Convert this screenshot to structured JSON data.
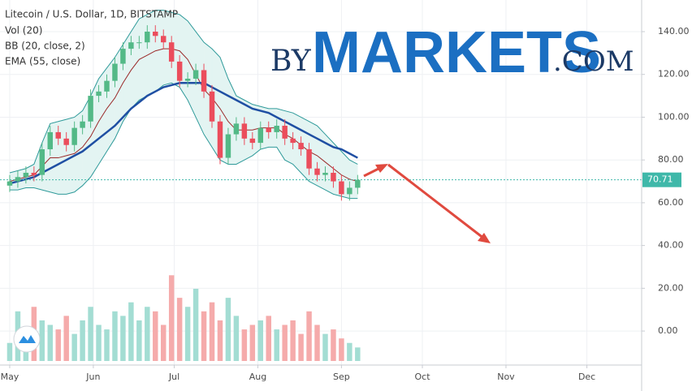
{
  "chart_data": {
    "type": "candlestick",
    "title": "Litecoin / U.S. Dollar, 1D, BITSTAMP",
    "watermark": [
      "BY",
      "MARKETS",
      ".COM"
    ],
    "x": [
      0,
      3,
      6,
      9,
      12,
      15,
      18,
      21,
      24,
      27,
      30,
      33,
      36,
      39,
      42,
      45,
      48,
      51,
      54,
      57,
      60,
      63,
      66,
      69,
      72,
      75,
      78,
      81,
      84,
      87,
      90,
      93,
      96,
      99,
      102,
      105,
      108,
      111,
      114,
      117,
      120,
      123,
      126,
      129
    ],
    "open": [
      68,
      70,
      72,
      74,
      73,
      85,
      93,
      90,
      87,
      95,
      98,
      110,
      112,
      117,
      125,
      132,
      135,
      135,
      140,
      138,
      135,
      126,
      117,
      118,
      122,
      112,
      98,
      81,
      92,
      97,
      90,
      88,
      95,
      93,
      96,
      90,
      88,
      85,
      76,
      73,
      74,
      70,
      64,
      67
    ],
    "high": [
      73,
      75,
      77,
      77,
      88,
      96,
      96,
      93,
      98,
      101,
      113,
      115,
      120,
      128,
      135,
      138,
      138,
      143,
      143,
      141,
      138,
      129,
      121,
      125,
      125,
      115,
      101,
      95,
      100,
      100,
      93,
      98,
      98,
      99,
      99,
      93,
      91,
      88,
      79,
      77,
      77,
      73,
      70,
      73
    ],
    "low": [
      65,
      67,
      69,
      70,
      70,
      82,
      87,
      84,
      84,
      92,
      95,
      107,
      109,
      114,
      122,
      129,
      132,
      132,
      135,
      132,
      123,
      114,
      114,
      115,
      109,
      95,
      78,
      78,
      89,
      87,
      85,
      85,
      90,
      90,
      87,
      85,
      82,
      73,
      70,
      70,
      67,
      61,
      61,
      64
    ],
    "close": [
      70,
      72,
      74,
      73,
      85,
      93,
      90,
      87,
      95,
      98,
      110,
      112,
      117,
      125,
      132,
      135,
      135,
      140,
      138,
      135,
      126,
      117,
      118,
      122,
      112,
      98,
      81,
      92,
      97,
      90,
      88,
      95,
      93,
      96,
      90,
      88,
      85,
      76,
      73,
      74,
      70,
      64,
      67,
      70.71
    ],
    "up_color": "#53b987",
    "down_color": "#eb4d5c",
    "volume": {
      "label": "Vol (20)",
      "values": [
        20,
        55,
        30,
        60,
        45,
        40,
        35,
        50,
        30,
        45,
        60,
        40,
        35,
        55,
        50,
        65,
        45,
        60,
        55,
        40,
        95,
        70,
        60,
        80,
        55,
        65,
        45,
        70,
        50,
        35,
        40,
        45,
        50,
        35,
        40,
        45,
        30,
        55,
        40,
        30,
        35,
        25,
        20,
        15
      ],
      "lim": [
        0,
        400
      ],
      "up_color": "#a3ddd3",
      "down_color": "#f5abab"
    },
    "bb": {
      "label": "BB (20, close, 2)",
      "color": "#2f9a9a",
      "basis_color": "#9b2a2a",
      "fill": "#e3f4f2",
      "upper": [
        74,
        75,
        76,
        78,
        88,
        97,
        98,
        99,
        100,
        103,
        110,
        118,
        123,
        128,
        134,
        140,
        146,
        148,
        150,
        150,
        149,
        148,
        145,
        140,
        135,
        132,
        128,
        118,
        110,
        108,
        106,
        105,
        104,
        104,
        103,
        102,
        100,
        98,
        96,
        92,
        88,
        84,
        80,
        78
      ],
      "basis": [
        70,
        71,
        72,
        73,
        77,
        81,
        81,
        82,
        83,
        86,
        91,
        98,
        104,
        109,
        116,
        122,
        127,
        129,
        131,
        132,
        132,
        131,
        127,
        120,
        113,
        109,
        104,
        98,
        94,
        94,
        94,
        95,
        95,
        95,
        92,
        90,
        87,
        84,
        82,
        79,
        76,
        73,
        71,
        70
      ],
      "lower": [
        66,
        66,
        67,
        67,
        66,
        65,
        64,
        64,
        65,
        68,
        72,
        78,
        84,
        90,
        98,
        104,
        108,
        110,
        112,
        115,
        116,
        114,
        108,
        100,
        92,
        86,
        80,
        78,
        78,
        80,
        82,
        85,
        86,
        86,
        80,
        78,
        74,
        70,
        68,
        66,
        64,
        63,
        62,
        62
      ]
    },
    "ema": {
      "label": "EMA (55, close)",
      "color": "#1f4fa3",
      "values": [
        69,
        70,
        71,
        72,
        74,
        76,
        78,
        80,
        82,
        84,
        87,
        90,
        93,
        96,
        100,
        104,
        107,
        110,
        112,
        114,
        115,
        116,
        116,
        116,
        116,
        114,
        112,
        110,
        108,
        106,
        104,
        103,
        102,
        100,
        98,
        96,
        94,
        92,
        90,
        88,
        86,
        85,
        83,
        81
      ]
    },
    "last_price": 70.71,
    "last_price_color": "#3fb8a9",
    "xlim": [
      -3.6,
      234.3
    ],
    "xticks": [
      {
        "value": 0,
        "label": "May"
      },
      {
        "value": 31,
        "label": "Jun"
      },
      {
        "value": 61,
        "label": "Jul"
      },
      {
        "value": 92,
        "label": "Aug"
      },
      {
        "value": 123,
        "label": "Sep"
      },
      {
        "value": 153,
        "label": "Oct"
      },
      {
        "value": 184,
        "label": "Nov"
      },
      {
        "value": 214,
        "label": "Dec"
      }
    ],
    "ylim": [
      -15.9,
      154.8
    ],
    "yticks": [
      {
        "value": 0,
        "label": "0.00"
      },
      {
        "value": 20,
        "label": "20.00"
      },
      {
        "value": 40,
        "label": "40.00"
      },
      {
        "value": 60,
        "label": "60.00"
      },
      {
        "value": 80,
        "label": "80.00"
      },
      {
        "value": 100,
        "label": "100.00"
      },
      {
        "value": 120,
        "label": "120.00"
      },
      {
        "value": 140,
        "label": "140.00"
      }
    ],
    "grid": true
  }
}
